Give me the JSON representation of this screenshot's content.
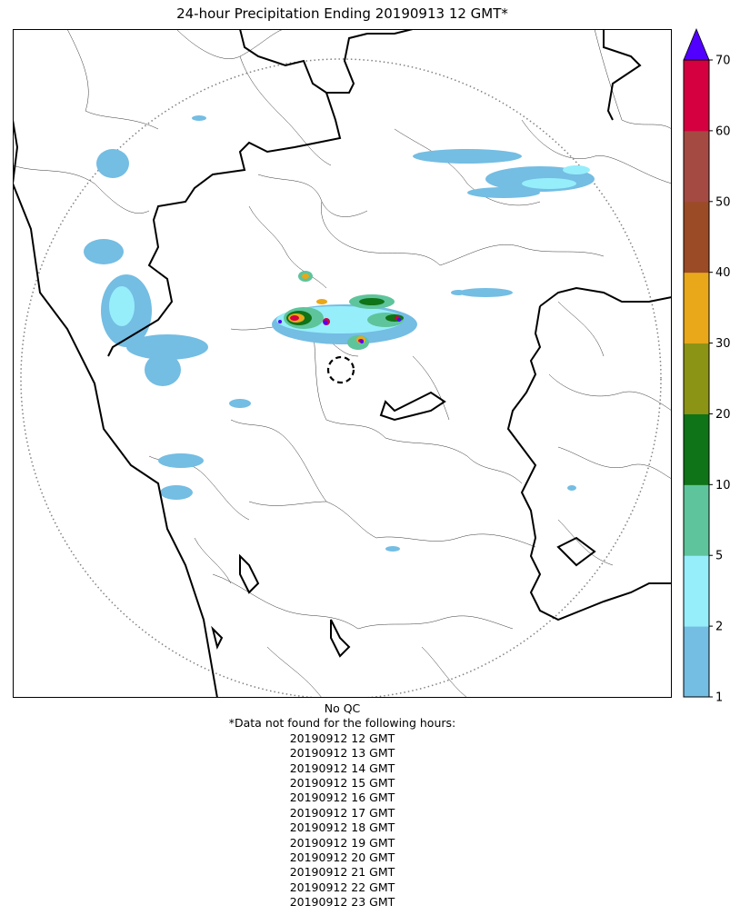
{
  "title": "24-hour Precipitation Ending 20190913 12 GMT*",
  "qc_note": "No QC",
  "missing_header": "*Data not found for the following hours:",
  "missing_hours": [
    "20190912 12 GMT",
    "20190912 13 GMT",
    "20190912 14 GMT",
    "20190912 15 GMT",
    "20190912 16 GMT",
    "20190912 17 GMT",
    "20190912 18 GMT",
    "20190912 19 GMT",
    "20190912 20 GMT",
    "20190912 21 GMT",
    "20190912 22 GMT",
    "20190912 23 GMT"
  ],
  "colorbar": {
    "ticks": [
      "1",
      "2",
      "5",
      "10",
      "20",
      "30",
      "40",
      "50",
      "60",
      "70"
    ],
    "colors": [
      "#74bde3",
      "#96eefb",
      "#5ec49b",
      "#0f7317",
      "#8b9414",
      "#e8a81a",
      "#9b4b26",
      "#a44a43",
      "#d5003f"
    ],
    "extend_color": "#5100ff"
  }
}
